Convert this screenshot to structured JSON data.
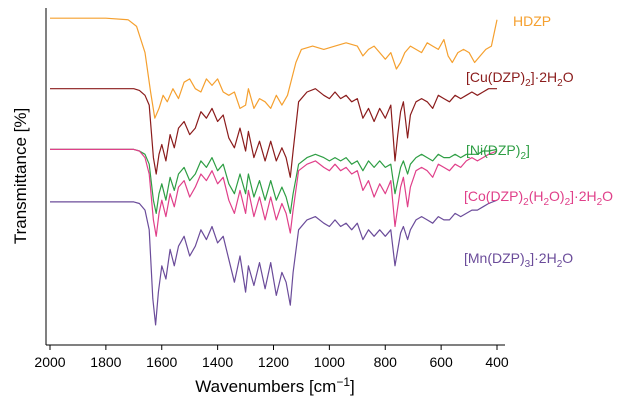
{
  "chart_data": {
    "type": "line",
    "title": "",
    "xlabel": "Wavenumbers [cm−1]",
    "ylabel": "Transmittance [%]",
    "x_reversed": true,
    "xlim": [
      2000,
      400
    ],
    "ylim": [
      0,
      100
    ],
    "x_ticks": [
      2000,
      1800,
      1600,
      1400,
      1200,
      1000,
      800,
      600,
      400
    ],
    "grid": false,
    "legend": "inline-right",
    "series": [
      {
        "name": "HDZP",
        "color": "#F5A02F",
        "x": [
          2000,
          1800,
          1720,
          1690,
          1660,
          1640,
          1625,
          1610,
          1595,
          1580,
          1560,
          1540,
          1520,
          1500,
          1480,
          1460,
          1440,
          1420,
          1400,
          1380,
          1360,
          1340,
          1320,
          1300,
          1290,
          1270,
          1250,
          1230,
          1210,
          1190,
          1170,
          1150,
          1135,
          1120,
          1100,
          1060,
          1020,
          980,
          940,
          900,
          880,
          860,
          840,
          820,
          800,
          780,
          760,
          745,
          730,
          710,
          690,
          670,
          650,
          630,
          610,
          590,
          575,
          560,
          540,
          520,
          500,
          480,
          460,
          440,
          420,
          400
        ],
        "y": [
          97.5,
          97.5,
          97,
          95,
          87,
          75,
          67,
          70,
          74,
          72,
          76,
          73,
          78,
          79,
          76,
          75,
          79,
          77,
          79,
          75,
          74,
          75,
          70,
          71,
          76,
          70,
          73,
          72,
          70,
          74,
          71,
          74,
          79,
          84,
          88,
          89,
          88,
          89,
          90,
          89,
          86,
          88,
          89,
          87,
          85,
          87,
          82,
          84,
          87,
          89,
          88,
          87,
          90,
          89,
          88,
          91,
          86,
          84,
          87,
          88,
          87,
          84,
          86,
          88,
          89,
          97
        ]
      },
      {
        "name": "[Cu(DZP)2]·2H2O",
        "color": "#8B1C1C",
        "x": [
          2000,
          1800,
          1700,
          1680,
          1660,
          1645,
          1630,
          1620,
          1610,
          1600,
          1585,
          1570,
          1555,
          1540,
          1520,
          1500,
          1480,
          1460,
          1440,
          1420,
          1400,
          1380,
          1360,
          1340,
          1320,
          1300,
          1290,
          1270,
          1250,
          1230,
          1210,
          1190,
          1170,
          1155,
          1140,
          1130,
          1110,
          1080,
          1050,
          1020,
          1000,
          980,
          960,
          940,
          920,
          900,
          880,
          860,
          840,
          820,
          800,
          780,
          765,
          755,
          745,
          735,
          720,
          710,
          690,
          670,
          650,
          630,
          610,
          590,
          570,
          550,
          530,
          510,
          490,
          470,
          450,
          430,
          400
        ],
        "y": [
          76,
          76,
          76,
          75.5,
          74,
          71,
          55,
          50,
          56,
          59,
          54,
          62,
          58,
          64,
          66,
          62,
          64,
          69,
          67,
          70,
          66,
          68,
          61,
          58,
          64,
          57,
          63,
          55,
          60,
          54,
          60,
          54,
          58,
          55,
          49,
          57,
          72,
          75,
          76,
          74,
          73,
          75,
          73,
          74,
          72,
          73,
          67,
          70,
          66,
          70,
          67,
          71,
          54,
          62,
          69,
          72,
          61,
          68,
          72,
          73,
          72,
          70,
          74,
          73,
          72,
          74,
          73,
          74,
          75,
          74,
          75,
          76,
          76
        ]
      },
      {
        "name": "[Ni(DZP)2]",
        "color": "#2E9E44",
        "x": [
          2000,
          1800,
          1700,
          1680,
          1660,
          1645,
          1630,
          1620,
          1610,
          1600,
          1585,
          1570,
          1555,
          1540,
          1520,
          1500,
          1480,
          1460,
          1440,
          1420,
          1400,
          1380,
          1360,
          1340,
          1320,
          1300,
          1290,
          1270,
          1250,
          1230,
          1210,
          1190,
          1170,
          1155,
          1140,
          1130,
          1110,
          1080,
          1050,
          1020,
          1000,
          980,
          960,
          940,
          920,
          900,
          880,
          860,
          840,
          820,
          800,
          780,
          765,
          755,
          745,
          735,
          720,
          710,
          690,
          670,
          650,
          630,
          610,
          590,
          570,
          550,
          530,
          510,
          490,
          470,
          450,
          430,
          400
        ],
        "y": [
          57.5,
          57.5,
          57.5,
          57,
          56,
          53,
          42,
          38,
          44,
          47,
          42,
          49,
          45,
          50,
          52,
          48,
          50,
          54,
          52,
          55,
          51,
          53,
          47,
          44,
          50,
          44,
          50,
          43,
          48,
          42,
          48,
          42,
          46,
          43,
          38,
          44,
          53,
          55,
          56,
          55,
          54,
          55,
          54,
          55,
          53,
          54,
          51,
          54,
          52,
          54,
          52,
          53,
          44,
          48,
          52,
          54,
          50,
          53,
          55,
          56,
          55,
          54,
          56,
          55,
          55,
          56,
          55,
          56,
          56,
          56,
          57,
          57,
          57.5
        ]
      },
      {
        "name": "[Co(DZP)2(H2O)2]·2H2O",
        "color": "#E0408A",
        "x": [
          2000,
          1800,
          1700,
          1680,
          1660,
          1645,
          1630,
          1620,
          1610,
          1600,
          1585,
          1570,
          1555,
          1540,
          1520,
          1500,
          1480,
          1460,
          1440,
          1420,
          1400,
          1380,
          1360,
          1340,
          1320,
          1300,
          1290,
          1270,
          1250,
          1230,
          1210,
          1190,
          1170,
          1155,
          1140,
          1130,
          1110,
          1080,
          1050,
          1020,
          1000,
          980,
          960,
          940,
          920,
          900,
          880,
          860,
          840,
          820,
          800,
          780,
          765,
          755,
          745,
          735,
          720,
          710,
          690,
          670,
          650,
          630,
          610,
          590,
          570,
          550,
          530,
          510,
          490,
          470,
          450,
          430,
          400
        ],
        "y": [
          57.5,
          57.5,
          57.5,
          57,
          55,
          50,
          36,
          31,
          38,
          42,
          37,
          44,
          40,
          46,
          48,
          43,
          46,
          50,
          48,
          51,
          47,
          49,
          42,
          38,
          45,
          38,
          45,
          37,
          43,
          36,
          43,
          36,
          41,
          38,
          32,
          39,
          51,
          53,
          54,
          52,
          51,
          53,
          51,
          52,
          50,
          51,
          45,
          48,
          43,
          47,
          44,
          48,
          34,
          40,
          46,
          49,
          40,
          46,
          51,
          52,
          51,
          49,
          53,
          52,
          51,
          53,
          52,
          54,
          55,
          54,
          55,
          56,
          57
        ]
      },
      {
        "name": "[Mn(DZP)3]·2H2O",
        "color": "#6B4C9A",
        "x": [
          2000,
          1800,
          1700,
          1680,
          1660,
          1645,
          1632,
          1622,
          1612,
          1600,
          1585,
          1570,
          1555,
          1540,
          1520,
          1500,
          1480,
          1460,
          1440,
          1420,
          1400,
          1380,
          1360,
          1340,
          1320,
          1300,
          1290,
          1270,
          1250,
          1230,
          1210,
          1190,
          1170,
          1155,
          1140,
          1130,
          1110,
          1080,
          1050,
          1020,
          1000,
          980,
          960,
          940,
          920,
          900,
          880,
          860,
          840,
          820,
          800,
          780,
          765,
          755,
          745,
          735,
          720,
          710,
          690,
          670,
          650,
          630,
          610,
          590,
          570,
          550,
          530,
          510,
          490,
          470,
          450,
          430,
          400
        ],
        "y": [
          41.5,
          41.5,
          41.5,
          41,
          39,
          33,
          12,
          4,
          14,
          22,
          18,
          27,
          22,
          28,
          31,
          25,
          28,
          33,
          30,
          34,
          29,
          31,
          24,
          17,
          25,
          14,
          22,
          16,
          23,
          15,
          23,
          13,
          20,
          17,
          10,
          20,
          33,
          36,
          37,
          35,
          34,
          36,
          34,
          35,
          33,
          35,
          30,
          33,
          31,
          33,
          31,
          33,
          22,
          27,
          32,
          34,
          30,
          33,
          36,
          37,
          36,
          35,
          37,
          36,
          36,
          38,
          37,
          38,
          39,
          39,
          40,
          41,
          42
        ]
      }
    ]
  },
  "labels": {
    "HDZP": "HDZP",
    "cu_main": "[Cu(DZP)",
    "cu_sub1": "2",
    "cu_mid": "]·2H",
    "cu_sub2": "2",
    "cu_end": "O",
    "ni_main": "[Ni(DZP)",
    "ni_sub1": "2",
    "ni_end": "]",
    "co_main": "[Co(DZP)",
    "co_sub1": "2",
    "co_mid1": "(H",
    "co_sub2": "2",
    "co_mid2": "O)",
    "co_sub3": "2",
    "co_mid3": "]·2H",
    "co_sub4": "2",
    "co_end": "O",
    "mn_main": "[Mn(DZP)",
    "mn_sub1": "3",
    "mn_mid": "]·2H",
    "mn_sub2": "2",
    "mn_end": "O",
    "xlabel_main": "Wavenumbers [cm",
    "xlabel_sup": "−1",
    "xlabel_end": "]",
    "ylabel": "Transmittance [%]"
  }
}
